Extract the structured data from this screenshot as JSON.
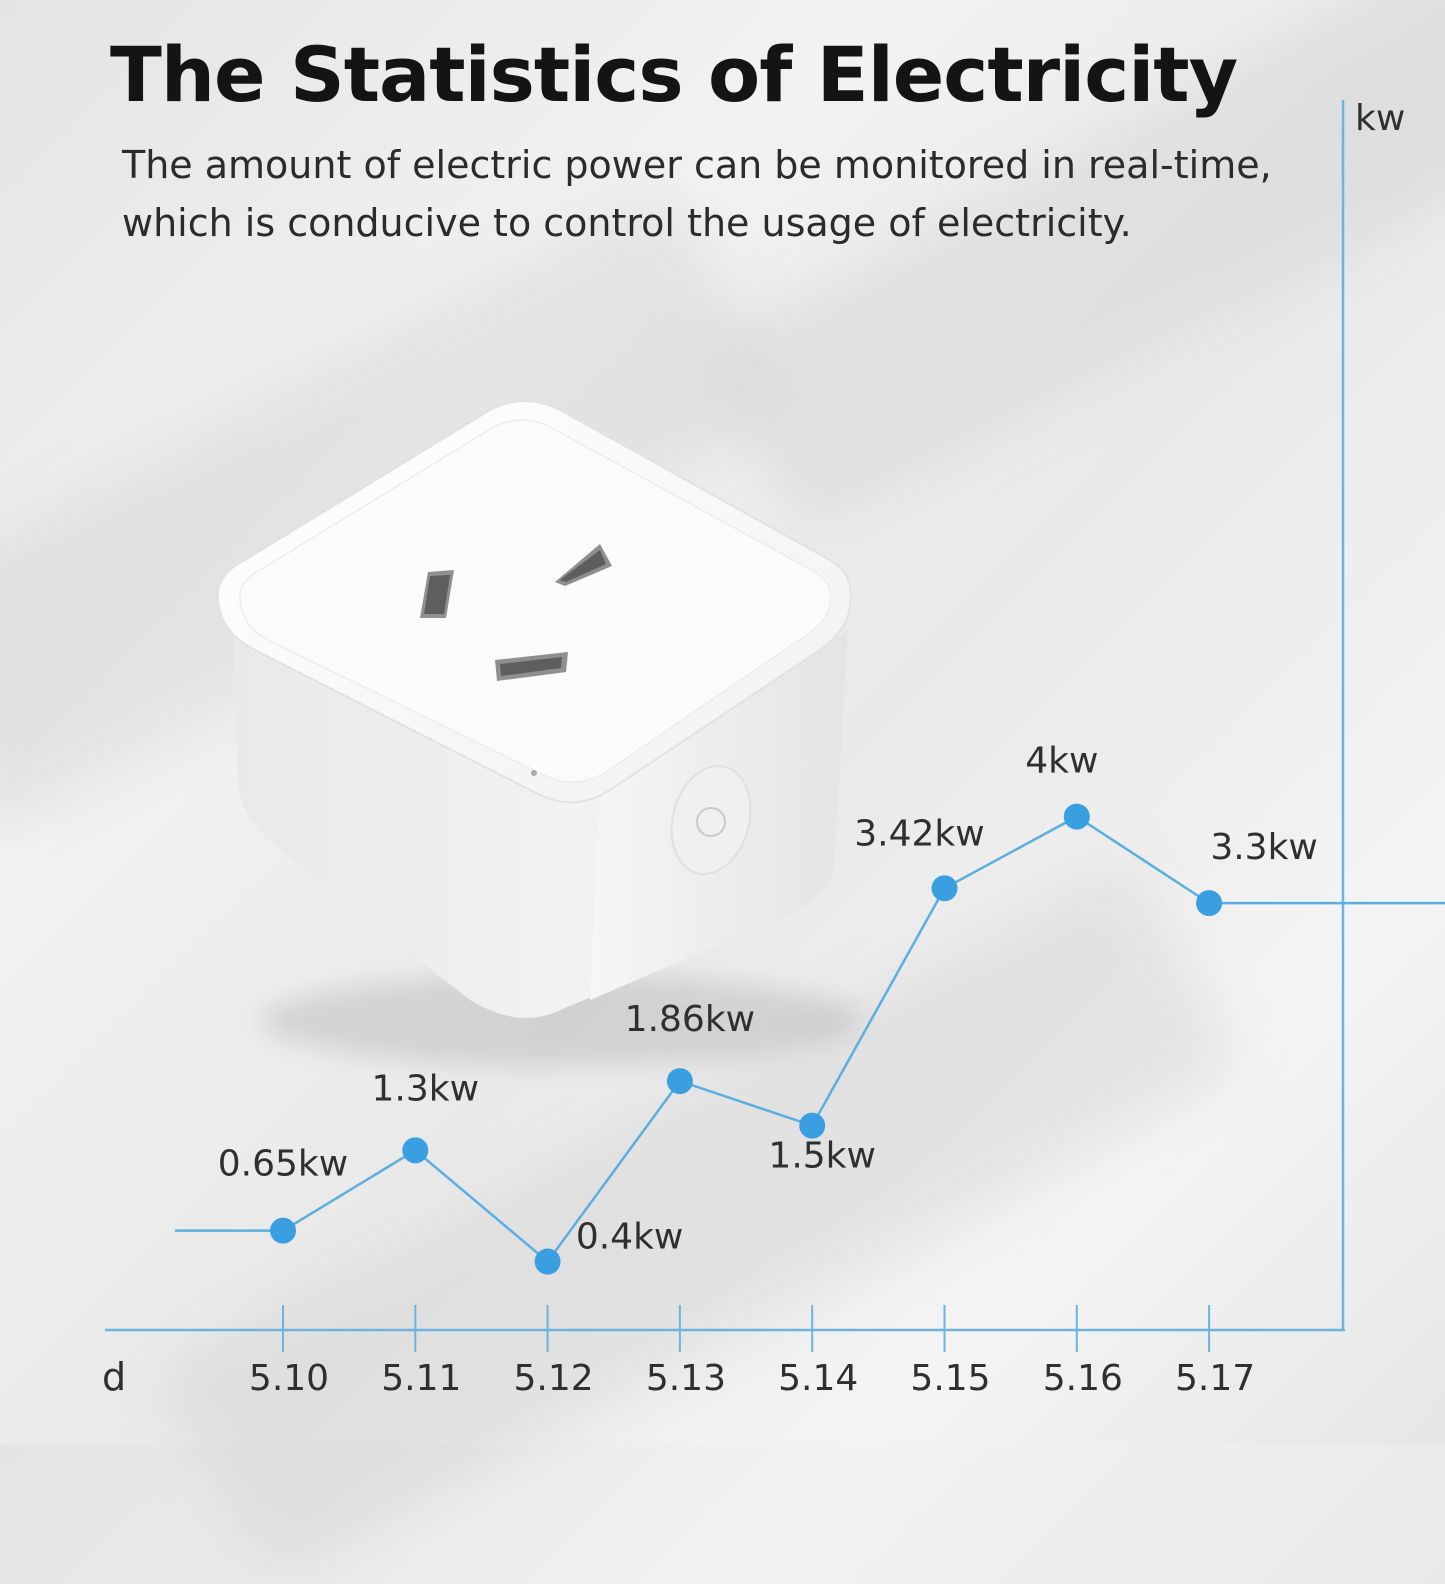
{
  "header": {
    "title": "The Statistics of Electricity",
    "subtitle_line1": "The amount of electric power can be monitored in real-time,",
    "subtitle_line2": "which is conducive to control the usage of electricity."
  },
  "colors": {
    "line": "#5aaee0",
    "point": "#3a9fe0",
    "axis": "#6bb4df",
    "text": "#2f2f2f"
  },
  "product": {
    "icon": "smart-plug-socket"
  },
  "chart_data": {
    "type": "line",
    "xlabel": "d",
    "ylabel": "kw",
    "categories": [
      "5.10",
      "5.11",
      "5.12",
      "5.13",
      "5.14",
      "5.15",
      "5.16",
      "5.17"
    ],
    "series": [
      {
        "values": [
          0.65,
          1.3,
          0.4,
          1.86,
          1.5,
          3.42,
          4,
          3.3
        ],
        "labels": [
          "0.65kw",
          "1.3kw",
          "0.4kw",
          "1.86kw",
          "1.5kw",
          "3.42kw",
          "4kw",
          "3.3kw"
        ]
      }
    ],
    "grid": false,
    "legend": "none"
  }
}
